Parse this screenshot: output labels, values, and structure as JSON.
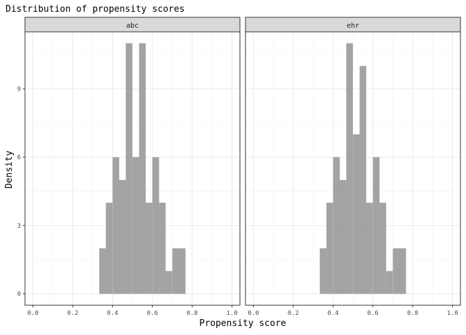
{
  "chart_data": {
    "type": "bar",
    "title": "Distribution of propensity scores",
    "xlabel": "Propensity score",
    "ylabel": "Density",
    "xlim": [
      -0.04,
      1.04
    ],
    "ylim": [
      -0.5,
      11.5
    ],
    "x_ticks": [
      0.0,
      0.2,
      0.4,
      0.6,
      0.8,
      1.0
    ],
    "x_tick_labels": [
      "0.0",
      "0.2",
      "0.4",
      "0.6",
      "0.8",
      "1.0"
    ],
    "y_ticks": [
      0,
      3,
      6,
      9
    ],
    "y_tick_labels": [
      "0",
      "3",
      "6",
      "9"
    ],
    "grid": true,
    "bin_width": 0.0333,
    "bar_color": "#999999",
    "panels": [
      {
        "strip_label": "abc",
        "bins": [
          {
            "x": 0.35,
            "y": 2
          },
          {
            "x": 0.383,
            "y": 4
          },
          {
            "x": 0.417,
            "y": 6
          },
          {
            "x": 0.45,
            "y": 5
          },
          {
            "x": 0.483,
            "y": 11
          },
          {
            "x": 0.517,
            "y": 6
          },
          {
            "x": 0.55,
            "y": 11
          },
          {
            "x": 0.583,
            "y": 4
          },
          {
            "x": 0.617,
            "y": 6
          },
          {
            "x": 0.65,
            "y": 4
          },
          {
            "x": 0.683,
            "y": 1
          },
          {
            "x": 0.717,
            "y": 2
          },
          {
            "x": 0.75,
            "y": 2
          }
        ]
      },
      {
        "strip_label": "ehr",
        "bins": [
          {
            "x": 0.35,
            "y": 2
          },
          {
            "x": 0.383,
            "y": 4
          },
          {
            "x": 0.417,
            "y": 6
          },
          {
            "x": 0.45,
            "y": 5
          },
          {
            "x": 0.483,
            "y": 11
          },
          {
            "x": 0.517,
            "y": 7
          },
          {
            "x": 0.55,
            "y": 10
          },
          {
            "x": 0.583,
            "y": 4
          },
          {
            "x": 0.617,
            "y": 6
          },
          {
            "x": 0.65,
            "y": 4
          },
          {
            "x": 0.683,
            "y": 1
          },
          {
            "x": 0.717,
            "y": 2
          },
          {
            "x": 0.75,
            "y": 2
          }
        ]
      }
    ]
  }
}
